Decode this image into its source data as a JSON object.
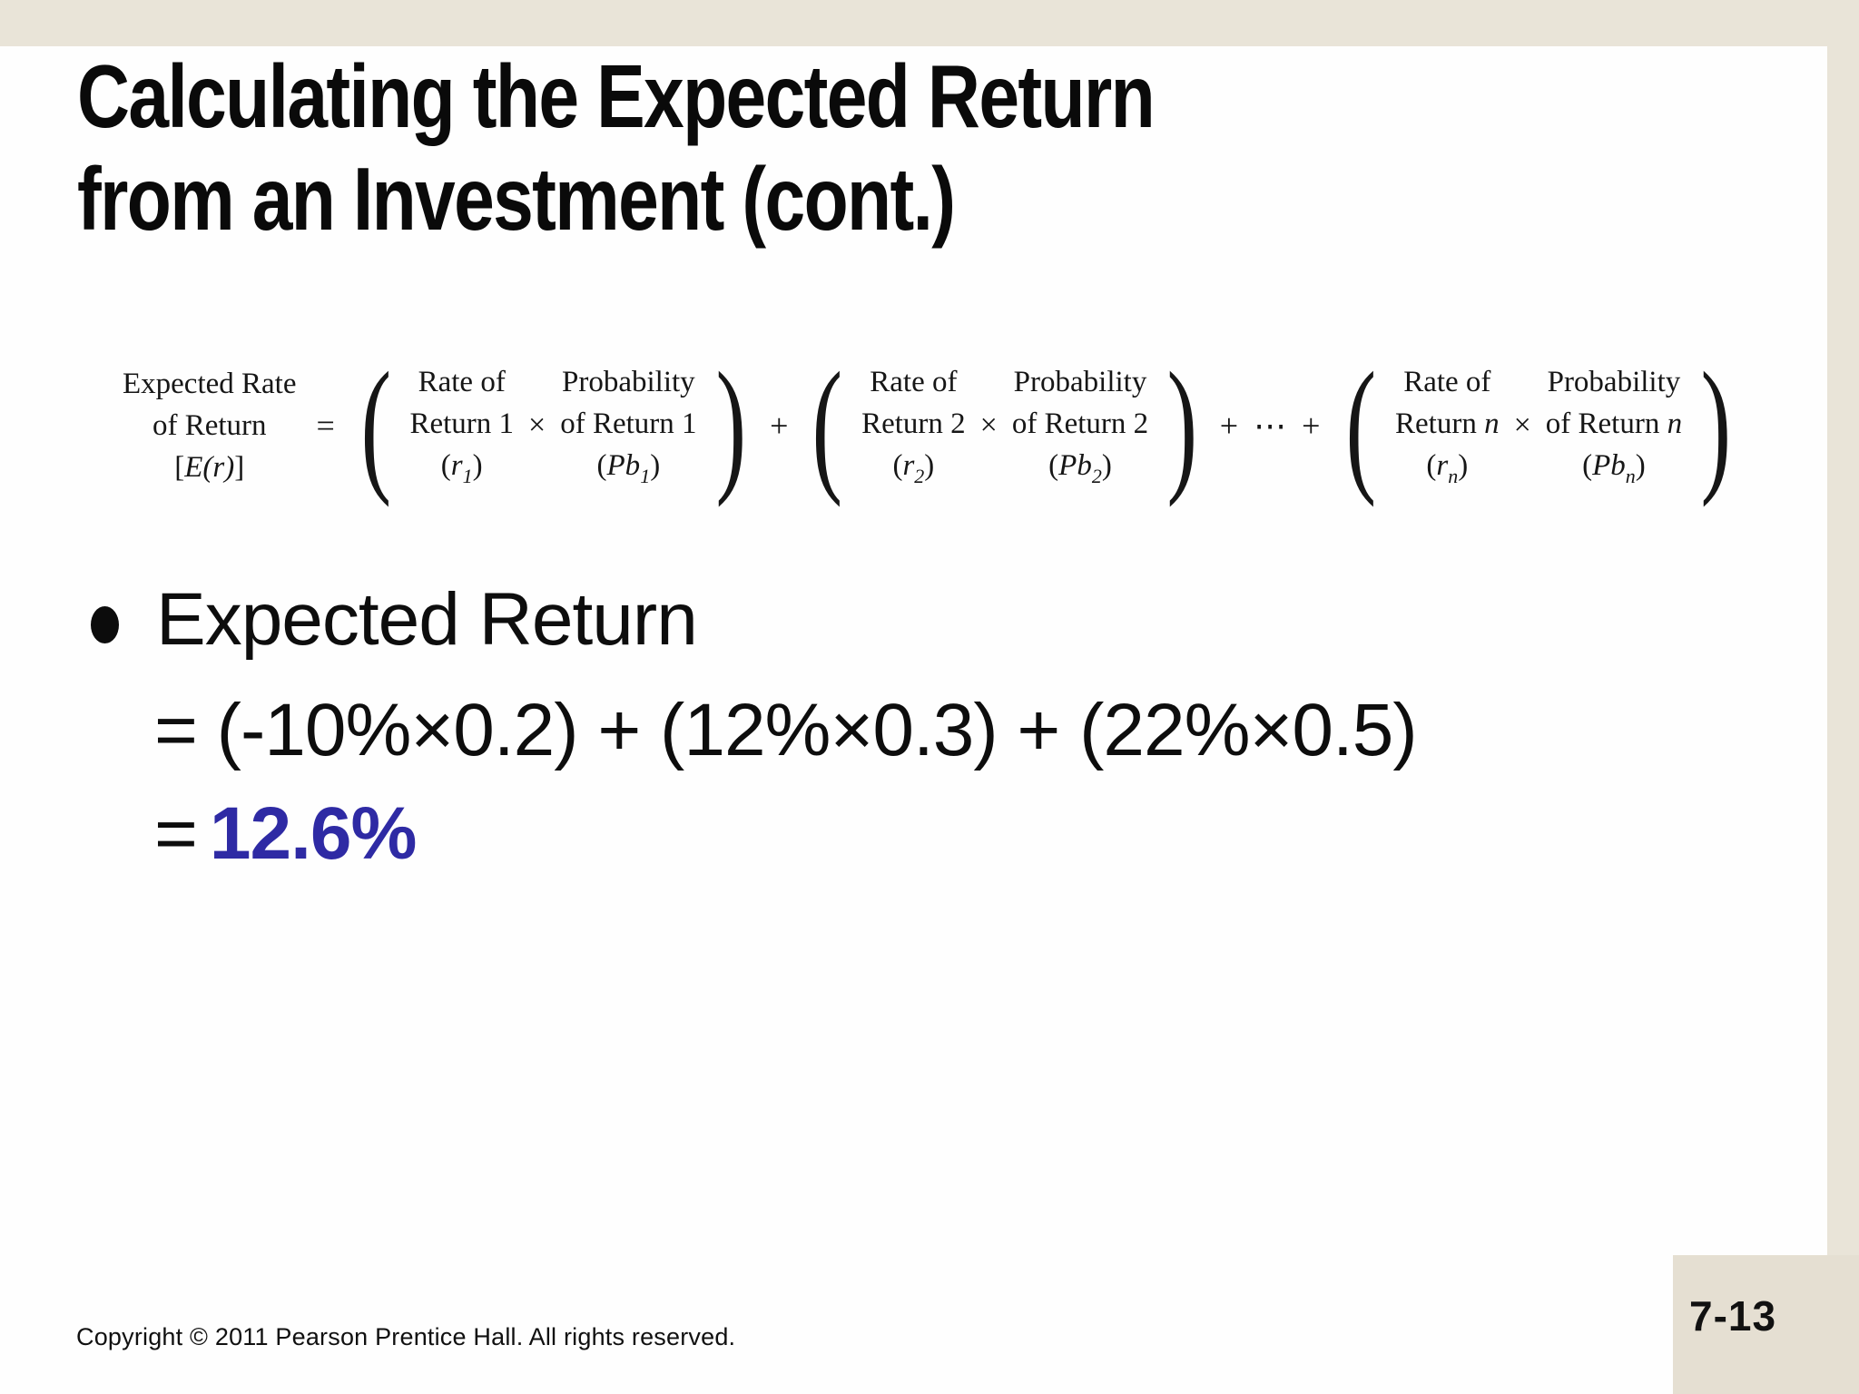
{
  "slide": {
    "title_line1": "Calculating the Expected Return",
    "title_line2": "from an Investment (cont.)",
    "colors": {
      "frame_beige": "#e9e4d8",
      "page_box_beige": "#e5dfd2",
      "slide_background": "#fefefe",
      "accent_blue": "#2e2aa4",
      "text_black": "#0d0d0d"
    }
  },
  "formula": {
    "lhs": {
      "line1": "Expected Rate",
      "line2": "of Return",
      "line3_open": "[",
      "line3_it": "E(r)",
      "line3_close": "]"
    },
    "equals": "=",
    "plus": "+",
    "plus_dots": "+ ⋯ +",
    "terms": [
      {
        "rate_line1": "Rate of",
        "rate_line2": "Return 1",
        "rate_line2_it": "",
        "rate_open": "(",
        "rate_var": "r",
        "rate_sub": "1",
        "rate_close": ")",
        "times": "×",
        "prob_line1": "Probability",
        "prob_line2": "of Return 1",
        "prob_line2_it": "",
        "prob_open": "(",
        "prob_var": "Pb",
        "prob_sub": "1",
        "prob_close": ")"
      },
      {
        "rate_line1": "Rate of",
        "rate_line2": "Return 2",
        "rate_line2_it": "",
        "rate_open": "(",
        "rate_var": "r",
        "rate_sub": "2",
        "rate_close": ")",
        "times": "×",
        "prob_line1": "Probability",
        "prob_line2": "of Return 2",
        "prob_line2_it": "",
        "prob_open": "(",
        "prob_var": "Pb",
        "prob_sub": "2",
        "prob_close": ")"
      },
      {
        "rate_line1": "Rate of",
        "rate_line2": "Return ",
        "rate_line2_it": "n",
        "rate_open": "(",
        "rate_var": "r",
        "rate_sub": "n",
        "rate_close": ")",
        "times": "×",
        "prob_line1": "Probability",
        "prob_line2": "of Return ",
        "prob_line2_it": "n",
        "prob_open": "(",
        "prob_var": "Pb",
        "prob_sub": "n",
        "prob_close": ")"
      }
    ]
  },
  "bullet": {
    "heading": "Expected Return",
    "equation": "= (-10%×0.2) + (12%×0.3) + (22%×0.5)",
    "result_prefix": "=",
    "result": "12.6%"
  },
  "footer": {
    "copyright": "Copyright © 2011 Pearson Prentice Hall. All rights reserved.",
    "page_number": "7-13"
  }
}
